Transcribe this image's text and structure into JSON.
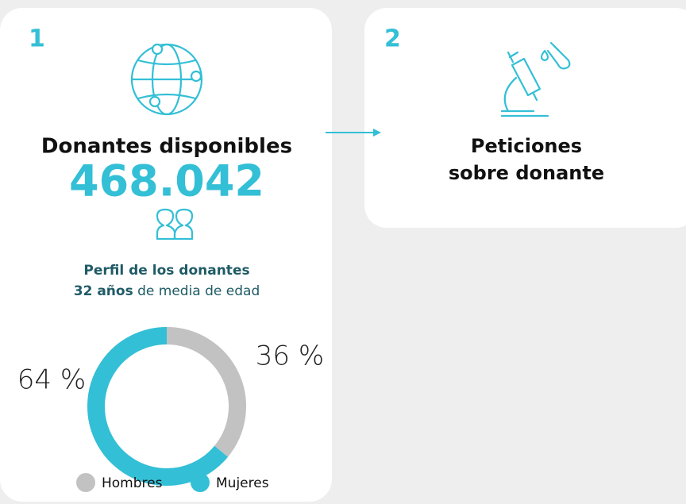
{
  "cards": [
    {
      "number": "1",
      "title": "Donantes disponibles",
      "figure": "468.042",
      "profile_title": "Perfil de los donantes",
      "profile_age": "32 años",
      "profile_age_suffix": "de media de edad"
    },
    {
      "number": "2",
      "title_line1": "Peticiones",
      "title_line2": "sobre donante"
    }
  ],
  "chart_data": {
    "type": "pie",
    "donut": true,
    "categories": [
      "Hombres",
      "Mujeres"
    ],
    "values": [
      36,
      64
    ],
    "value_labels": [
      "36 %",
      "64 %"
    ],
    "colors": [
      "#c2c2c2",
      "#33bfd6"
    ]
  }
}
